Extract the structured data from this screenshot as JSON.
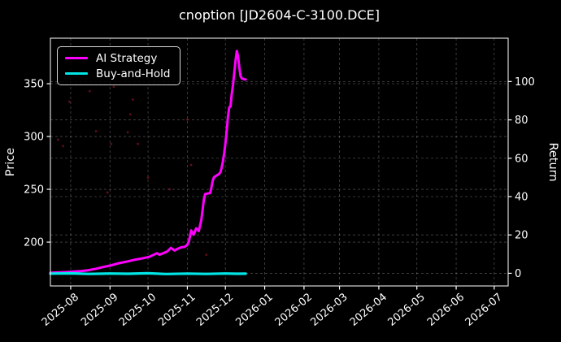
{
  "title": "cnoption [JD2604-C-3100.DCE]",
  "legend": [
    {
      "label": "AI Strategy",
      "color": "#ff00ff"
    },
    {
      "label": "Buy-and-Hold",
      "color": "#00e5e6"
    }
  ],
  "chart_data": {
    "type": "line",
    "title": "cnoption [JD2604-C-3100.DCE]",
    "xlabel": "",
    "ylabel_left": "Price",
    "ylabel_right": "Return",
    "grid": true,
    "legend_position": "upper-left",
    "background": "#000000",
    "x_domain": [
      "2025-07-16",
      "2026-07-12"
    ],
    "x_ticks": [
      {
        "date": "2025-08-01",
        "label": "2025-08"
      },
      {
        "date": "2025-09-01",
        "label": "2025-09"
      },
      {
        "date": "2025-10-01",
        "label": "2025-10"
      },
      {
        "date": "2025-11-01",
        "label": "2025-11"
      },
      {
        "date": "2025-12-01",
        "label": "2025-12"
      },
      {
        "date": "2026-01-01",
        "label": "2026-01"
      },
      {
        "date": "2026-02-01",
        "label": "2026-02"
      },
      {
        "date": "2026-03-01",
        "label": "2026-03"
      },
      {
        "date": "2026-04-01",
        "label": "2026-04"
      },
      {
        "date": "2026-05-01",
        "label": "2026-05"
      },
      {
        "date": "2026-06-01",
        "label": "2026-06"
      },
      {
        "date": "2026-07-01",
        "label": "2026-07"
      }
    ],
    "y_left": {
      "label": "Price",
      "range": [
        158.5,
        393.1
      ],
      "ticks": [
        200,
        250,
        300,
        350
      ]
    },
    "y_right": {
      "label": "Return",
      "range": [
        -6.6,
        122.6
      ],
      "ticks": [
        0,
        20,
        40,
        60,
        80,
        100
      ]
    },
    "series": [
      {
        "name": "AI Strategy",
        "color": "#ff00ff",
        "width": 3,
        "axis": "left",
        "points": [
          [
            "2025-07-16",
            171.0
          ],
          [
            "2025-07-22",
            171.3
          ],
          [
            "2025-07-28",
            171.6
          ],
          [
            "2025-08-03",
            172.0
          ],
          [
            "2025-08-09",
            172.6
          ],
          [
            "2025-08-15",
            173.4
          ],
          [
            "2025-08-21",
            174.8
          ],
          [
            "2025-08-27",
            176.5
          ],
          [
            "2025-09-02",
            178.0
          ],
          [
            "2025-09-08",
            180.0
          ],
          [
            "2025-09-14",
            181.5
          ],
          [
            "2025-09-20",
            183.2
          ],
          [
            "2025-09-26",
            184.5
          ],
          [
            "2025-10-02",
            186.0
          ],
          [
            "2025-10-08",
            189.5
          ],
          [
            "2025-10-10",
            188.0
          ],
          [
            "2025-10-13",
            189.5
          ],
          [
            "2025-10-16",
            191.0
          ],
          [
            "2025-10-19",
            194.5
          ],
          [
            "2025-10-22",
            192.0
          ],
          [
            "2025-10-24",
            193.5
          ],
          [
            "2025-10-27",
            195.0
          ],
          [
            "2025-10-30",
            195.5
          ],
          [
            "2025-11-01",
            197.5
          ],
          [
            "2025-11-02",
            200.0
          ],
          [
            "2025-11-03",
            205.0
          ],
          [
            "2025-11-04",
            211.0
          ],
          [
            "2025-11-06",
            207.0
          ],
          [
            "2025-11-08",
            213.0
          ],
          [
            "2025-11-10",
            210.5
          ],
          [
            "2025-11-12",
            221.0
          ],
          [
            "2025-11-13",
            230.0
          ],
          [
            "2025-11-14",
            240.0
          ],
          [
            "2025-11-15",
            245.5
          ],
          [
            "2025-11-17",
            246.0
          ],
          [
            "2025-11-19",
            246.5
          ],
          [
            "2025-11-20",
            252.0
          ],
          [
            "2025-11-21",
            258.0
          ],
          [
            "2025-11-22",
            261.5
          ],
          [
            "2025-11-24",
            263.0
          ],
          [
            "2025-11-26",
            264.5
          ],
          [
            "2025-11-27",
            266.0
          ],
          [
            "2025-11-28",
            270.0
          ],
          [
            "2025-11-29",
            276.0
          ],
          [
            "2025-11-30",
            284.0
          ],
          [
            "2025-12-01",
            293.0
          ],
          [
            "2025-12-02",
            305.0
          ],
          [
            "2025-12-03",
            318.0
          ],
          [
            "2025-12-04",
            327.5
          ],
          [
            "2025-12-05",
            328.5
          ],
          [
            "2025-12-06",
            340.0
          ],
          [
            "2025-12-07",
            349.0
          ],
          [
            "2025-12-08",
            360.0
          ],
          [
            "2025-12-09",
            372.0
          ],
          [
            "2025-12-10",
            381.0
          ],
          [
            "2025-12-11",
            376.0
          ],
          [
            "2025-12-12",
            365.0
          ],
          [
            "2025-12-13",
            357.0
          ],
          [
            "2025-12-14",
            355.0
          ],
          [
            "2025-12-16",
            354.0
          ],
          [
            "2025-12-17",
            354.0
          ]
        ]
      },
      {
        "name": "Buy-and-Hold",
        "color": "#00e5e6",
        "width": 3.2,
        "axis": "left",
        "points": [
          [
            "2025-07-16",
            170.2
          ],
          [
            "2025-08-01",
            170.4
          ],
          [
            "2025-08-15",
            169.9
          ],
          [
            "2025-09-01",
            170.3
          ],
          [
            "2025-09-15",
            170.0
          ],
          [
            "2025-10-01",
            170.5
          ],
          [
            "2025-10-15",
            169.8
          ],
          [
            "2025-11-01",
            170.2
          ],
          [
            "2025-11-15",
            169.9
          ],
          [
            "2025-12-01",
            170.3
          ],
          [
            "2025-12-10",
            170.0
          ],
          [
            "2025-12-17",
            170.1
          ]
        ]
      }
    ],
    "scatter": {
      "name": "signal-dots",
      "color": "#a01828",
      "axis": "left",
      "points": [
        [
          "2025-07-22",
          297
        ],
        [
          "2025-07-26",
          291
        ],
        [
          "2025-07-31",
          333
        ],
        [
          "2025-08-16",
          343
        ],
        [
          "2025-08-21",
          305
        ],
        [
          "2025-08-30",
          247
        ],
        [
          "2025-09-02",
          293
        ],
        [
          "2025-09-04",
          347
        ],
        [
          "2025-09-15",
          304
        ],
        [
          "2025-09-17",
          321
        ],
        [
          "2025-09-19",
          335
        ],
        [
          "2025-09-23",
          293
        ],
        [
          "2025-10-01",
          261
        ],
        [
          "2025-10-18",
          250
        ],
        [
          "2025-11-01",
          316
        ],
        [
          "2025-11-04",
          273
        ],
        [
          "2025-11-16",
          188
        ]
      ]
    }
  }
}
